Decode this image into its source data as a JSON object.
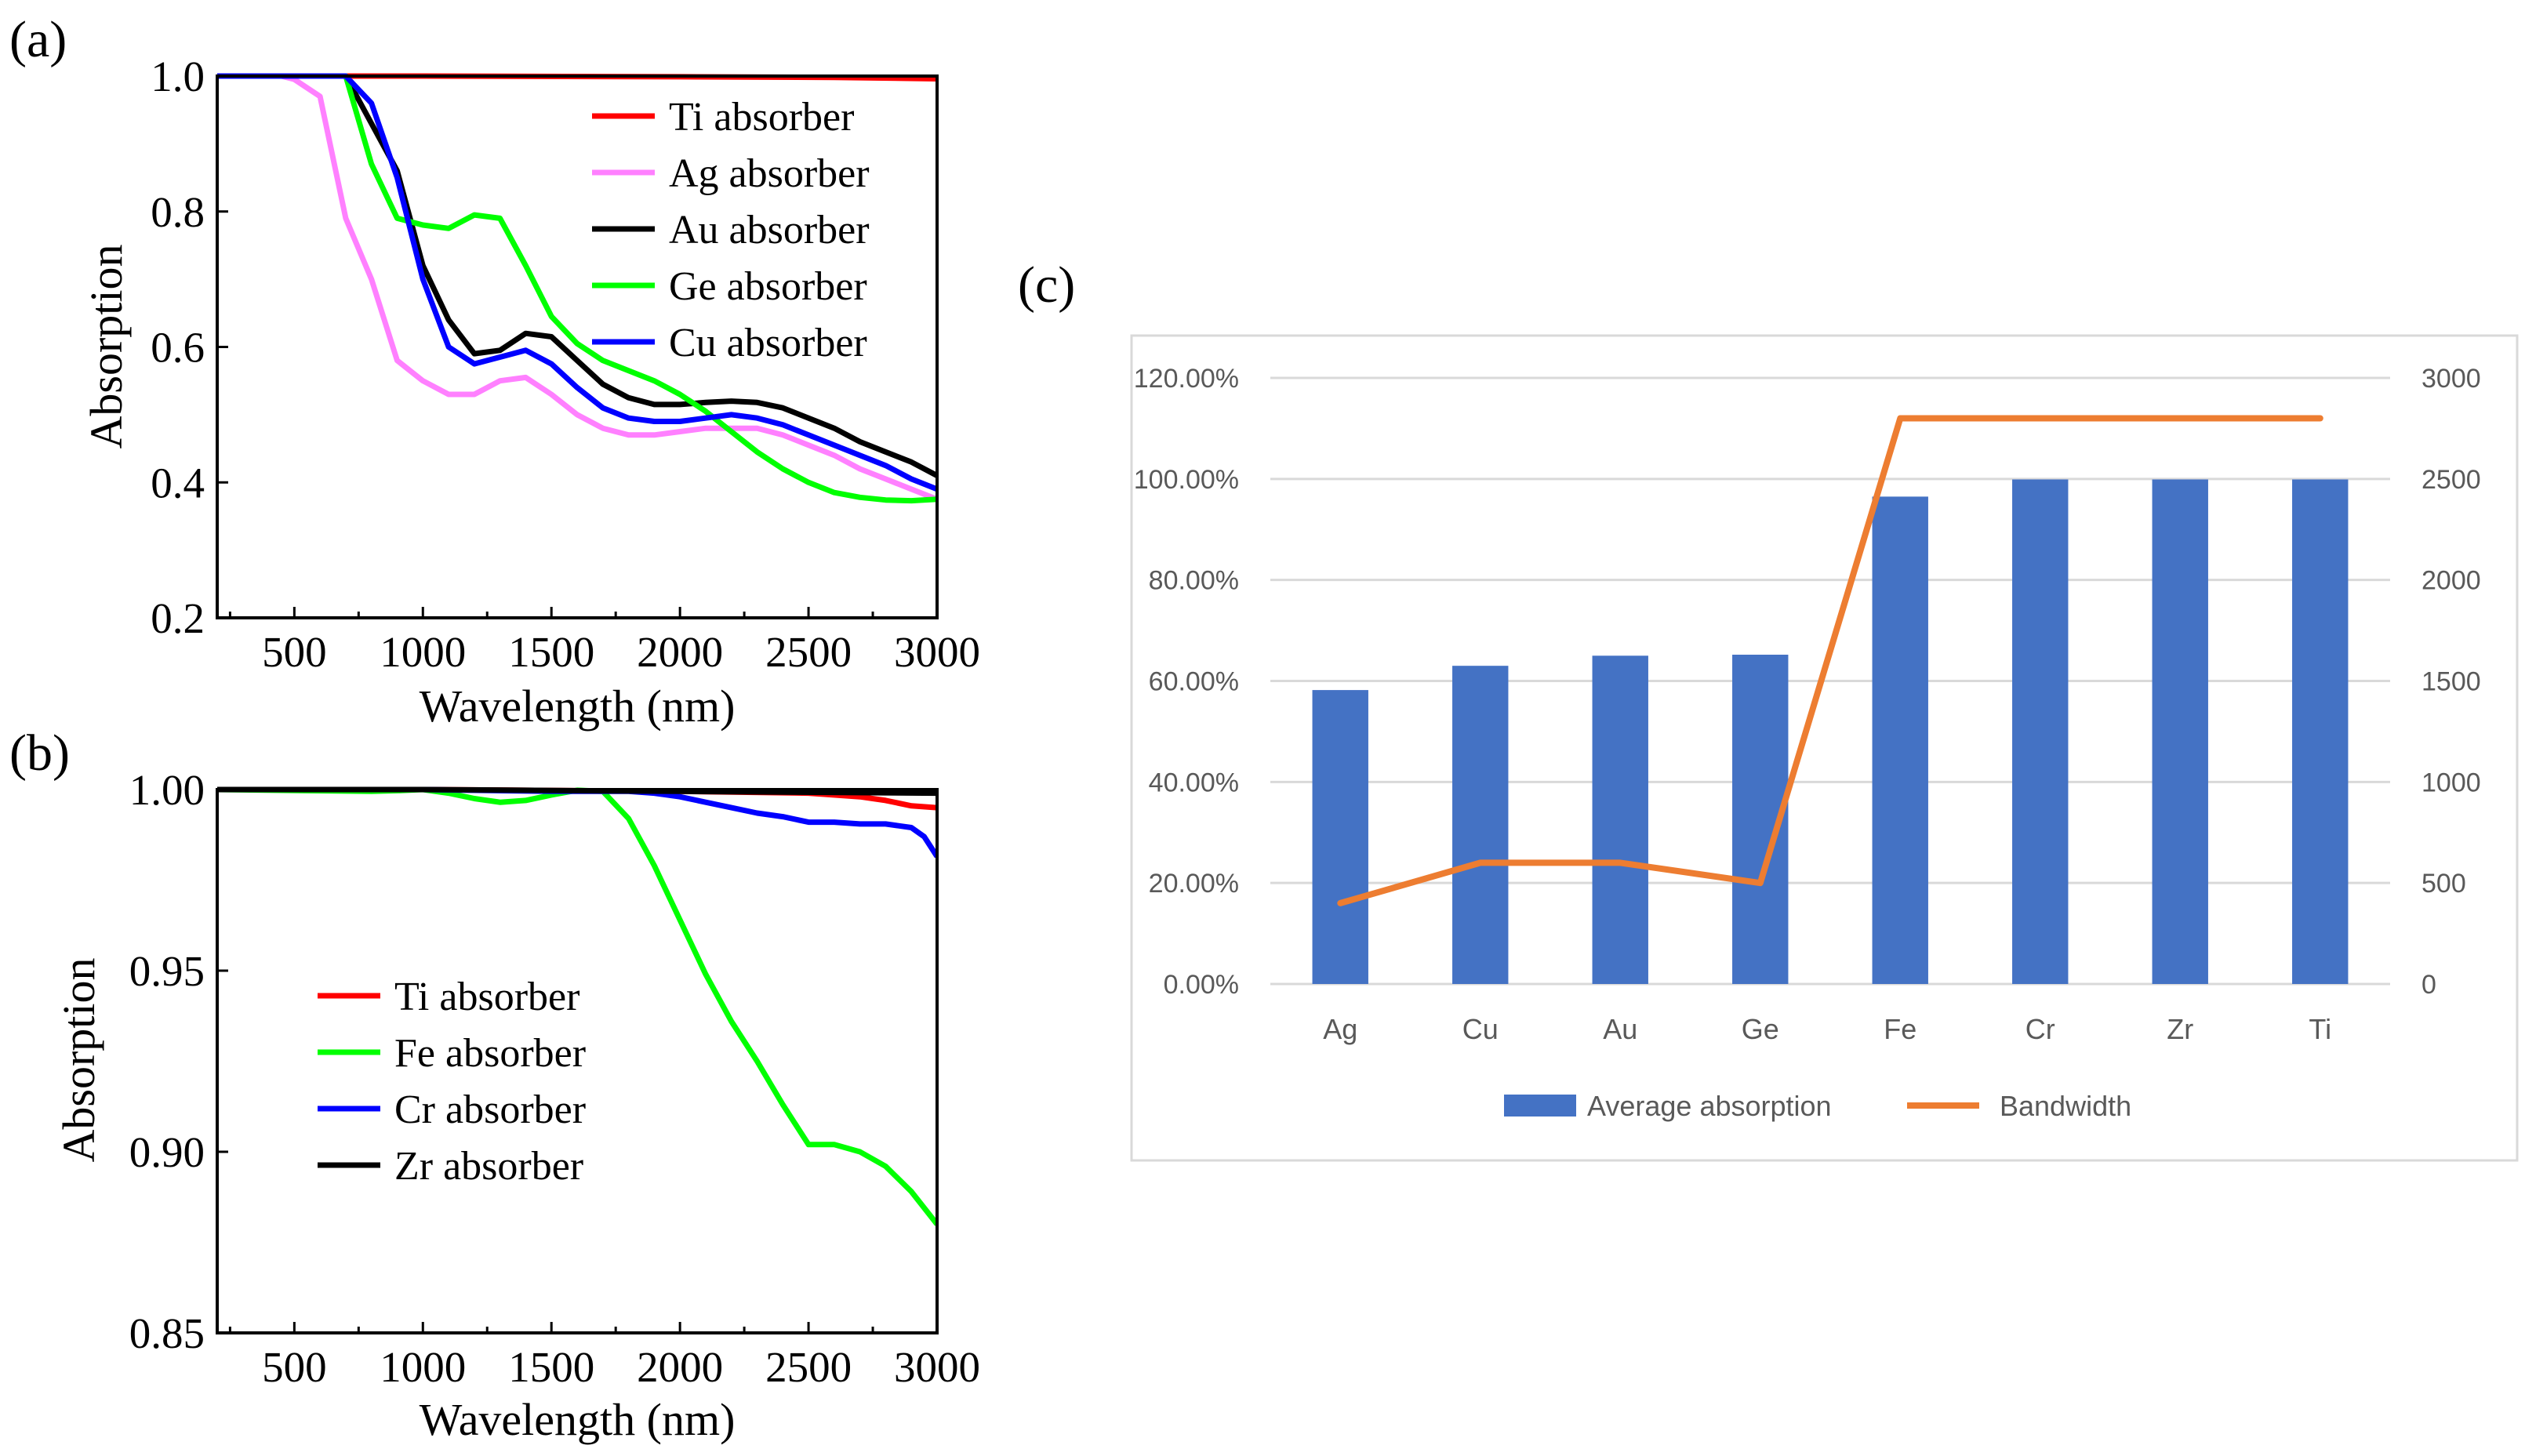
{
  "panel_labels": {
    "a": "(a)",
    "b": "(b)",
    "c": "(c)"
  },
  "chart_data": [
    {
      "id": "a",
      "type": "line",
      "title": "",
      "xlabel": "Wavelength (nm)",
      "ylabel": "Absorption",
      "xlim": [
        200,
        3000
      ],
      "ylim": [
        0.2,
        1.0
      ],
      "xticks": [
        500,
        1000,
        1500,
        2000,
        2500,
        3000
      ],
      "yticks": [
        0.2,
        0.4,
        0.6,
        0.8,
        1.0
      ],
      "ytick_labels": [
        "0.2",
        "0.4",
        "0.6",
        "0.8",
        "1.0"
      ],
      "legend_position": "top-right",
      "series": [
        {
          "name": "Ti absorber",
          "color": "#ff0000",
          "x": [
            200,
            1000,
            2000,
            2600,
            3000
          ],
          "y": [
            1.0,
            1.0,
            0.999,
            0.998,
            0.996
          ]
        },
        {
          "name": "Ag absorber",
          "color": "#ff80ff",
          "x": [
            200,
            450,
            500,
            600,
            700,
            800,
            900,
            1000,
            1100,
            1200,
            1300,
            1400,
            1500,
            1600,
            1700,
            1800,
            1900,
            2000,
            2100,
            2200,
            2300,
            2400,
            2500,
            2600,
            2700,
            2800,
            2900,
            3000
          ],
          "y": [
            1.0,
            1.0,
            0.995,
            0.97,
            0.79,
            0.7,
            0.58,
            0.55,
            0.53,
            0.53,
            0.55,
            0.555,
            0.53,
            0.5,
            0.48,
            0.47,
            0.47,
            0.475,
            0.48,
            0.48,
            0.48,
            0.47,
            0.455,
            0.44,
            0.42,
            0.405,
            0.39,
            0.375
          ]
        },
        {
          "name": "Au absorber",
          "color": "#000000",
          "x": [
            200,
            700,
            800,
            900,
            1000,
            1100,
            1200,
            1300,
            1400,
            1500,
            1600,
            1700,
            1800,
            1900,
            2000,
            2100,
            2200,
            2300,
            2400,
            2500,
            2600,
            2700,
            2800,
            2900,
            3000
          ],
          "y": [
            1.0,
            1.0,
            0.93,
            0.86,
            0.72,
            0.64,
            0.59,
            0.595,
            0.62,
            0.615,
            0.58,
            0.545,
            0.525,
            0.515,
            0.515,
            0.518,
            0.52,
            0.518,
            0.51,
            0.495,
            0.48,
            0.46,
            0.445,
            0.43,
            0.41
          ]
        },
        {
          "name": "Ge absorber",
          "color": "#00ff00",
          "x": [
            200,
            700,
            800,
            900,
            1000,
            1100,
            1200,
            1300,
            1400,
            1500,
            1600,
            1700,
            1800,
            1900,
            2000,
            2100,
            2200,
            2300,
            2400,
            2500,
            2600,
            2700,
            2800,
            2900,
            3000
          ],
          "y": [
            1.0,
            1.0,
            0.87,
            0.79,
            0.78,
            0.775,
            0.795,
            0.79,
            0.72,
            0.645,
            0.605,
            0.58,
            0.565,
            0.55,
            0.53,
            0.505,
            0.475,
            0.445,
            0.42,
            0.4,
            0.385,
            0.378,
            0.374,
            0.373,
            0.375
          ]
        },
        {
          "name": "Cu absorber",
          "color": "#0000ff",
          "x": [
            200,
            700,
            800,
            900,
            1000,
            1100,
            1200,
            1300,
            1400,
            1500,
            1600,
            1700,
            1800,
            1900,
            2000,
            2100,
            2200,
            2300,
            2400,
            2500,
            2600,
            2700,
            2800,
            2900,
            3000
          ],
          "y": [
            1.0,
            1.0,
            0.96,
            0.85,
            0.7,
            0.6,
            0.575,
            0.585,
            0.595,
            0.575,
            0.54,
            0.51,
            0.495,
            0.49,
            0.49,
            0.495,
            0.5,
            0.495,
            0.485,
            0.47,
            0.455,
            0.44,
            0.425,
            0.405,
            0.39
          ]
        }
      ]
    },
    {
      "id": "b",
      "type": "line",
      "title": "",
      "xlabel": "Wavelength (nm)",
      "ylabel": "Absorption",
      "xlim": [
        200,
        3000
      ],
      "ylim": [
        0.85,
        1.0
      ],
      "xticks": [
        500,
        1000,
        1500,
        2000,
        2500,
        3000
      ],
      "yticks": [
        0.85,
        0.9,
        0.95,
        1.0
      ],
      "ytick_labels": [
        "0.85",
        "0.90",
        "0.95",
        "1.00"
      ],
      "legend_position": "center-left",
      "series": [
        {
          "name": "Ti absorber",
          "color": "#ff0000",
          "x": [
            200,
            1000,
            2000,
            2500,
            2700,
            2800,
            2900,
            3000
          ],
          "y": [
            1.0,
            1.0,
            0.9995,
            0.999,
            0.998,
            0.997,
            0.9955,
            0.995
          ]
        },
        {
          "name": "Fe absorber",
          "color": "#00ff00",
          "x": [
            200,
            800,
            900,
            1000,
            1100,
            1200,
            1300,
            1400,
            1500,
            1600,
            1700,
            1800,
            1900,
            2000,
            2100,
            2200,
            2300,
            2400,
            2500,
            2600,
            2700,
            2800,
            2900,
            3000
          ],
          "y": [
            1.0,
            0.9995,
            0.9997,
            1.0,
            0.999,
            0.9975,
            0.9965,
            0.997,
            0.9985,
            0.9998,
            0.9995,
            0.992,
            0.979,
            0.964,
            0.949,
            0.936,
            0.925,
            0.913,
            0.902,
            0.902,
            0.9,
            0.896,
            0.889,
            0.88
          ]
        },
        {
          "name": "Cr absorber",
          "color": "#0000ff",
          "x": [
            200,
            1000,
            1500,
            1800,
            1900,
            2000,
            2100,
            2200,
            2300,
            2400,
            2500,
            2600,
            2700,
            2800,
            2850,
            2900,
            2950,
            3000
          ],
          "y": [
            1.0,
            1.0,
            0.9995,
            0.9995,
            0.999,
            0.998,
            0.9965,
            0.995,
            0.9935,
            0.9925,
            0.991,
            0.991,
            0.9905,
            0.9905,
            0.99,
            0.9895,
            0.987,
            0.9815
          ]
        },
        {
          "name": "Zr absorber",
          "color": "#000000",
          "x": [
            200,
            1000,
            2000,
            3000
          ],
          "y": [
            1.0,
            1.0,
            0.9995,
            0.999
          ]
        }
      ]
    },
    {
      "id": "c",
      "type": "bar",
      "title": "",
      "xlabel": "",
      "categories": [
        "Ag",
        "Cu",
        "Au",
        "Ge",
        "Fe",
        "Cr",
        "Zr",
        "Ti"
      ],
      "series": [
        {
          "name": "Average absorption",
          "type": "bar",
          "axis": "left",
          "color": "#4472c4",
          "values": [
            58.2,
            63.0,
            65.0,
            65.2,
            96.5,
            99.9,
            99.9,
            99.9
          ]
        },
        {
          "name": "Bandwidth",
          "type": "line",
          "axis": "right",
          "color": "#ed7d31",
          "values": [
            400,
            600,
            600,
            500,
            2800,
            2800,
            2800,
            2800
          ]
        }
      ],
      "ylim_left": [
        0,
        120
      ],
      "yticks_left": [
        0,
        20,
        40,
        60,
        80,
        100,
        120
      ],
      "ytick_labels_left": [
        "0.00%",
        "20.00%",
        "40.00%",
        "60.00%",
        "80.00%",
        "100.00%",
        "120.00%"
      ],
      "ylim_right": [
        0,
        3000
      ],
      "yticks_right": [
        0,
        500,
        1000,
        1500,
        2000,
        2500,
        3000
      ],
      "ytick_labels_right": [
        "0",
        "500",
        "1000",
        "1500",
        "2000",
        "2500",
        "3000"
      ],
      "grid": true,
      "legend_position": "bottom-center"
    }
  ]
}
